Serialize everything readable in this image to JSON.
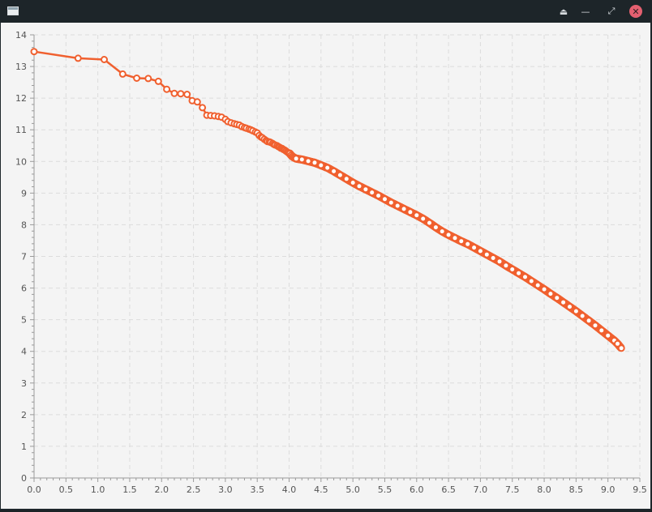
{
  "window": {
    "title": "",
    "buttons": [
      "eject-icon",
      "minimize-icon",
      "maximize-icon",
      "close-icon"
    ]
  },
  "chart_data": {
    "type": "line",
    "title": "",
    "xlabel": "",
    "ylabel": "",
    "xlim": [
      0,
      9.5
    ],
    "ylim": [
      0,
      14
    ],
    "grid": true,
    "line_color": "#f0602f",
    "marker": "hollow-circle",
    "xticks": [
      "0.0",
      "0.5",
      "1.0",
      "1.5",
      "2.0",
      "2.5",
      "3.0",
      "3.5",
      "4.0",
      "4.5",
      "5.0",
      "5.5",
      "6.0",
      "6.5",
      "7.0",
      "7.5",
      "8.0",
      "8.5",
      "9.0",
      "9.5"
    ],
    "yticks": [
      "0",
      "1",
      "2",
      "3",
      "4",
      "5",
      "6",
      "7",
      "8",
      "9",
      "10",
      "11",
      "12",
      "13",
      "14"
    ],
    "series": [
      {
        "x": [
          0.0,
          0.69,
          1.1,
          1.39,
          1.61,
          1.79,
          1.95,
          2.08,
          2.2,
          2.3,
          2.4,
          2.48,
          2.56,
          2.64,
          2.71,
          2.77,
          2.83,
          2.89,
          2.94,
          3.0,
          3.04,
          3.09,
          3.14,
          3.18,
          3.22,
          3.26,
          3.3,
          3.33,
          3.37,
          3.4,
          3.43,
          3.47,
          3.5,
          3.53,
          3.56,
          3.58,
          3.61,
          3.64,
          3.66,
          3.69,
          3.71,
          3.74,
          3.76,
          3.78,
          3.81,
          3.83,
          3.85,
          3.87,
          3.89,
          3.91,
          3.93,
          3.95,
          3.97,
          3.99,
          4.01,
          4.03,
          4.05,
          4.07,
          4.09,
          4.11,
          4.2,
          4.3,
          4.4,
          4.5,
          4.6,
          4.7,
          4.8,
          4.9,
          5.0,
          5.1,
          5.2,
          5.3,
          5.4,
          5.5,
          5.6,
          5.7,
          5.8,
          5.9,
          6.0,
          6.1,
          6.2,
          6.3,
          6.4,
          6.5,
          6.6,
          6.7,
          6.8,
          6.9,
          7.0,
          7.1,
          7.2,
          7.3,
          7.4,
          7.5,
          7.6,
          7.7,
          7.8,
          7.9,
          8.0,
          8.1,
          8.2,
          8.3,
          8.4,
          8.5,
          8.6,
          8.7,
          8.8,
          8.9,
          9.0,
          9.1,
          9.15,
          9.21
        ],
        "y": [
          13.47,
          13.26,
          13.22,
          12.76,
          12.63,
          12.62,
          12.53,
          12.28,
          12.15,
          12.14,
          12.12,
          11.92,
          11.88,
          11.7,
          11.46,
          11.45,
          11.44,
          11.42,
          11.4,
          11.33,
          11.26,
          11.22,
          11.19,
          11.17,
          11.15,
          11.1,
          11.07,
          11.05,
          11.02,
          11.0,
          10.97,
          10.93,
          10.9,
          10.82,
          10.77,
          10.75,
          10.7,
          10.66,
          10.63,
          10.62,
          10.6,
          10.57,
          10.54,
          10.52,
          10.5,
          10.47,
          10.45,
          10.42,
          10.41,
          10.38,
          10.36,
          10.33,
          10.3,
          10.27,
          10.25,
          10.2,
          10.16,
          10.13,
          10.11,
          10.09,
          10.06,
          10.01,
          9.96,
          9.88,
          9.8,
          9.69,
          9.57,
          9.45,
          9.33,
          9.22,
          9.12,
          9.02,
          8.92,
          8.81,
          8.7,
          8.6,
          8.5,
          8.4,
          8.3,
          8.19,
          8.06,
          7.92,
          7.79,
          7.68,
          7.58,
          7.48,
          7.39,
          7.28,
          7.17,
          7.06,
          6.95,
          6.84,
          6.71,
          6.59,
          6.47,
          6.35,
          6.22,
          6.09,
          5.96,
          5.82,
          5.69,
          5.55,
          5.41,
          5.27,
          5.12,
          4.97,
          4.82,
          4.66,
          4.5,
          4.34,
          4.24,
          4.1
        ]
      }
    ]
  }
}
